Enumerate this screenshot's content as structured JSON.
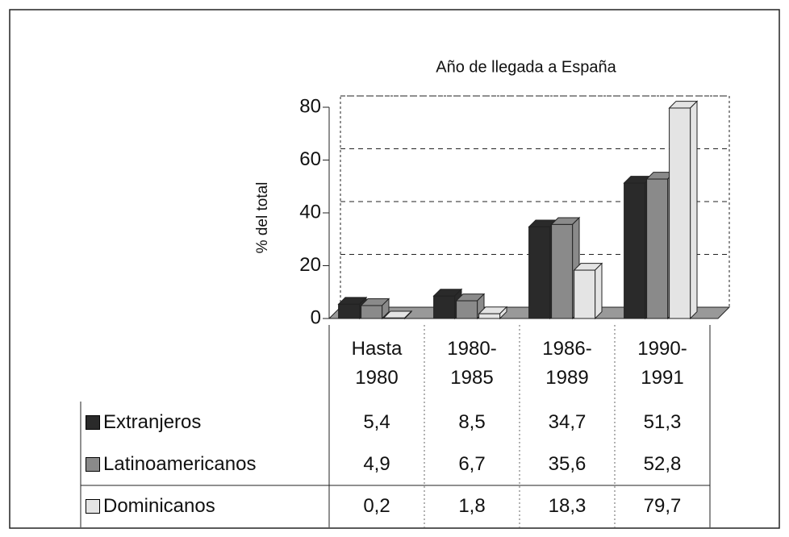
{
  "chart_data": {
    "type": "bar",
    "title": "Año de llegada a España",
    "y_label": "% del total",
    "categories": [
      "Hasta 1980",
      "1980-1985",
      "1986-1989",
      "1990-1991"
    ],
    "series": [
      {
        "name": "Extranjeros",
        "color": "#2a2a2a",
        "values": [
          5.4,
          8.5,
          34.7,
          51.3
        ],
        "value_labels": [
          "5,4",
          "8,5",
          "34,7",
          "51,3"
        ]
      },
      {
        "name": "Latinoamericanos",
        "color": "#8a8a8a",
        "values": [
          4.9,
          6.7,
          35.6,
          52.8
        ],
        "value_labels": [
          "4,9",
          "6,7",
          "35,6",
          "52,8"
        ]
      },
      {
        "name": "Dominicanos",
        "color": "#e4e4e4",
        "values": [
          0.2,
          1.8,
          18.3,
          79.7
        ],
        "value_labels": [
          "0,2",
          "1,8",
          "18,3",
          "79,7"
        ]
      }
    ],
    "ylim": [
      0,
      80
    ],
    "yticks": [
      0,
      20,
      40,
      60,
      80
    ],
    "grid": true
  }
}
